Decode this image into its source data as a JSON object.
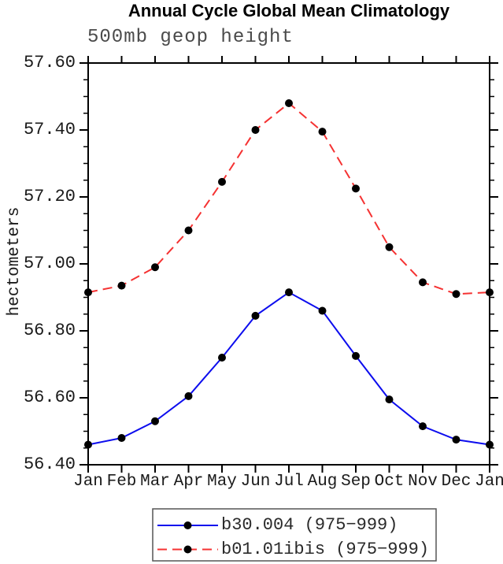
{
  "title": "Annual Cycle Global Mean Climatology",
  "subtitle": "500mb geop height",
  "colors": {
    "axis": "#000000",
    "tick_text": "#1a1a1a",
    "subtitle_text": "#4a4a4a",
    "series_blue": "#0d0dee",
    "series_red": "#f53232",
    "marker": "#000000",
    "legend_border": "#555555"
  },
  "chart_data": {
    "type": "line",
    "title": "Annual Cycle Global Mean Climatology",
    "subtitle": "500mb geop height",
    "ylabel": "hectometers",
    "xlabel": "",
    "x_categories": [
      "Jan",
      "Feb",
      "Mar",
      "Apr",
      "May",
      "Jun",
      "Jul",
      "Aug",
      "Sep",
      "Oct",
      "Nov",
      "Dec",
      "Jan"
    ],
    "ylim": [
      56.4,
      57.6
    ],
    "y_major_step": 0.2,
    "y_minor_step": 0.05,
    "y_tick_labels": [
      "56.40",
      "56.60",
      "56.80",
      "57.00",
      "57.20",
      "57.40",
      "57.60"
    ],
    "grid": false,
    "legend_position": "bottom-center",
    "series": [
      {
        "name": "b30.004 (975−999)",
        "color": "#0d0dee",
        "line_style": "solid",
        "marker": "filled-circle",
        "marker_color": "#000000",
        "values": [
          56.46,
          56.48,
          56.53,
          56.605,
          56.72,
          56.845,
          56.915,
          56.86,
          56.725,
          56.595,
          56.515,
          56.475,
          56.46
        ]
      },
      {
        "name": "b01.01ibis (975−999)",
        "color": "#f53232",
        "line_style": "dashed",
        "marker": "filled-circle",
        "marker_color": "#000000",
        "values": [
          56.915,
          56.935,
          56.99,
          57.1,
          57.245,
          57.4,
          57.48,
          57.395,
          57.225,
          57.05,
          56.945,
          56.91,
          56.915
        ]
      }
    ]
  }
}
